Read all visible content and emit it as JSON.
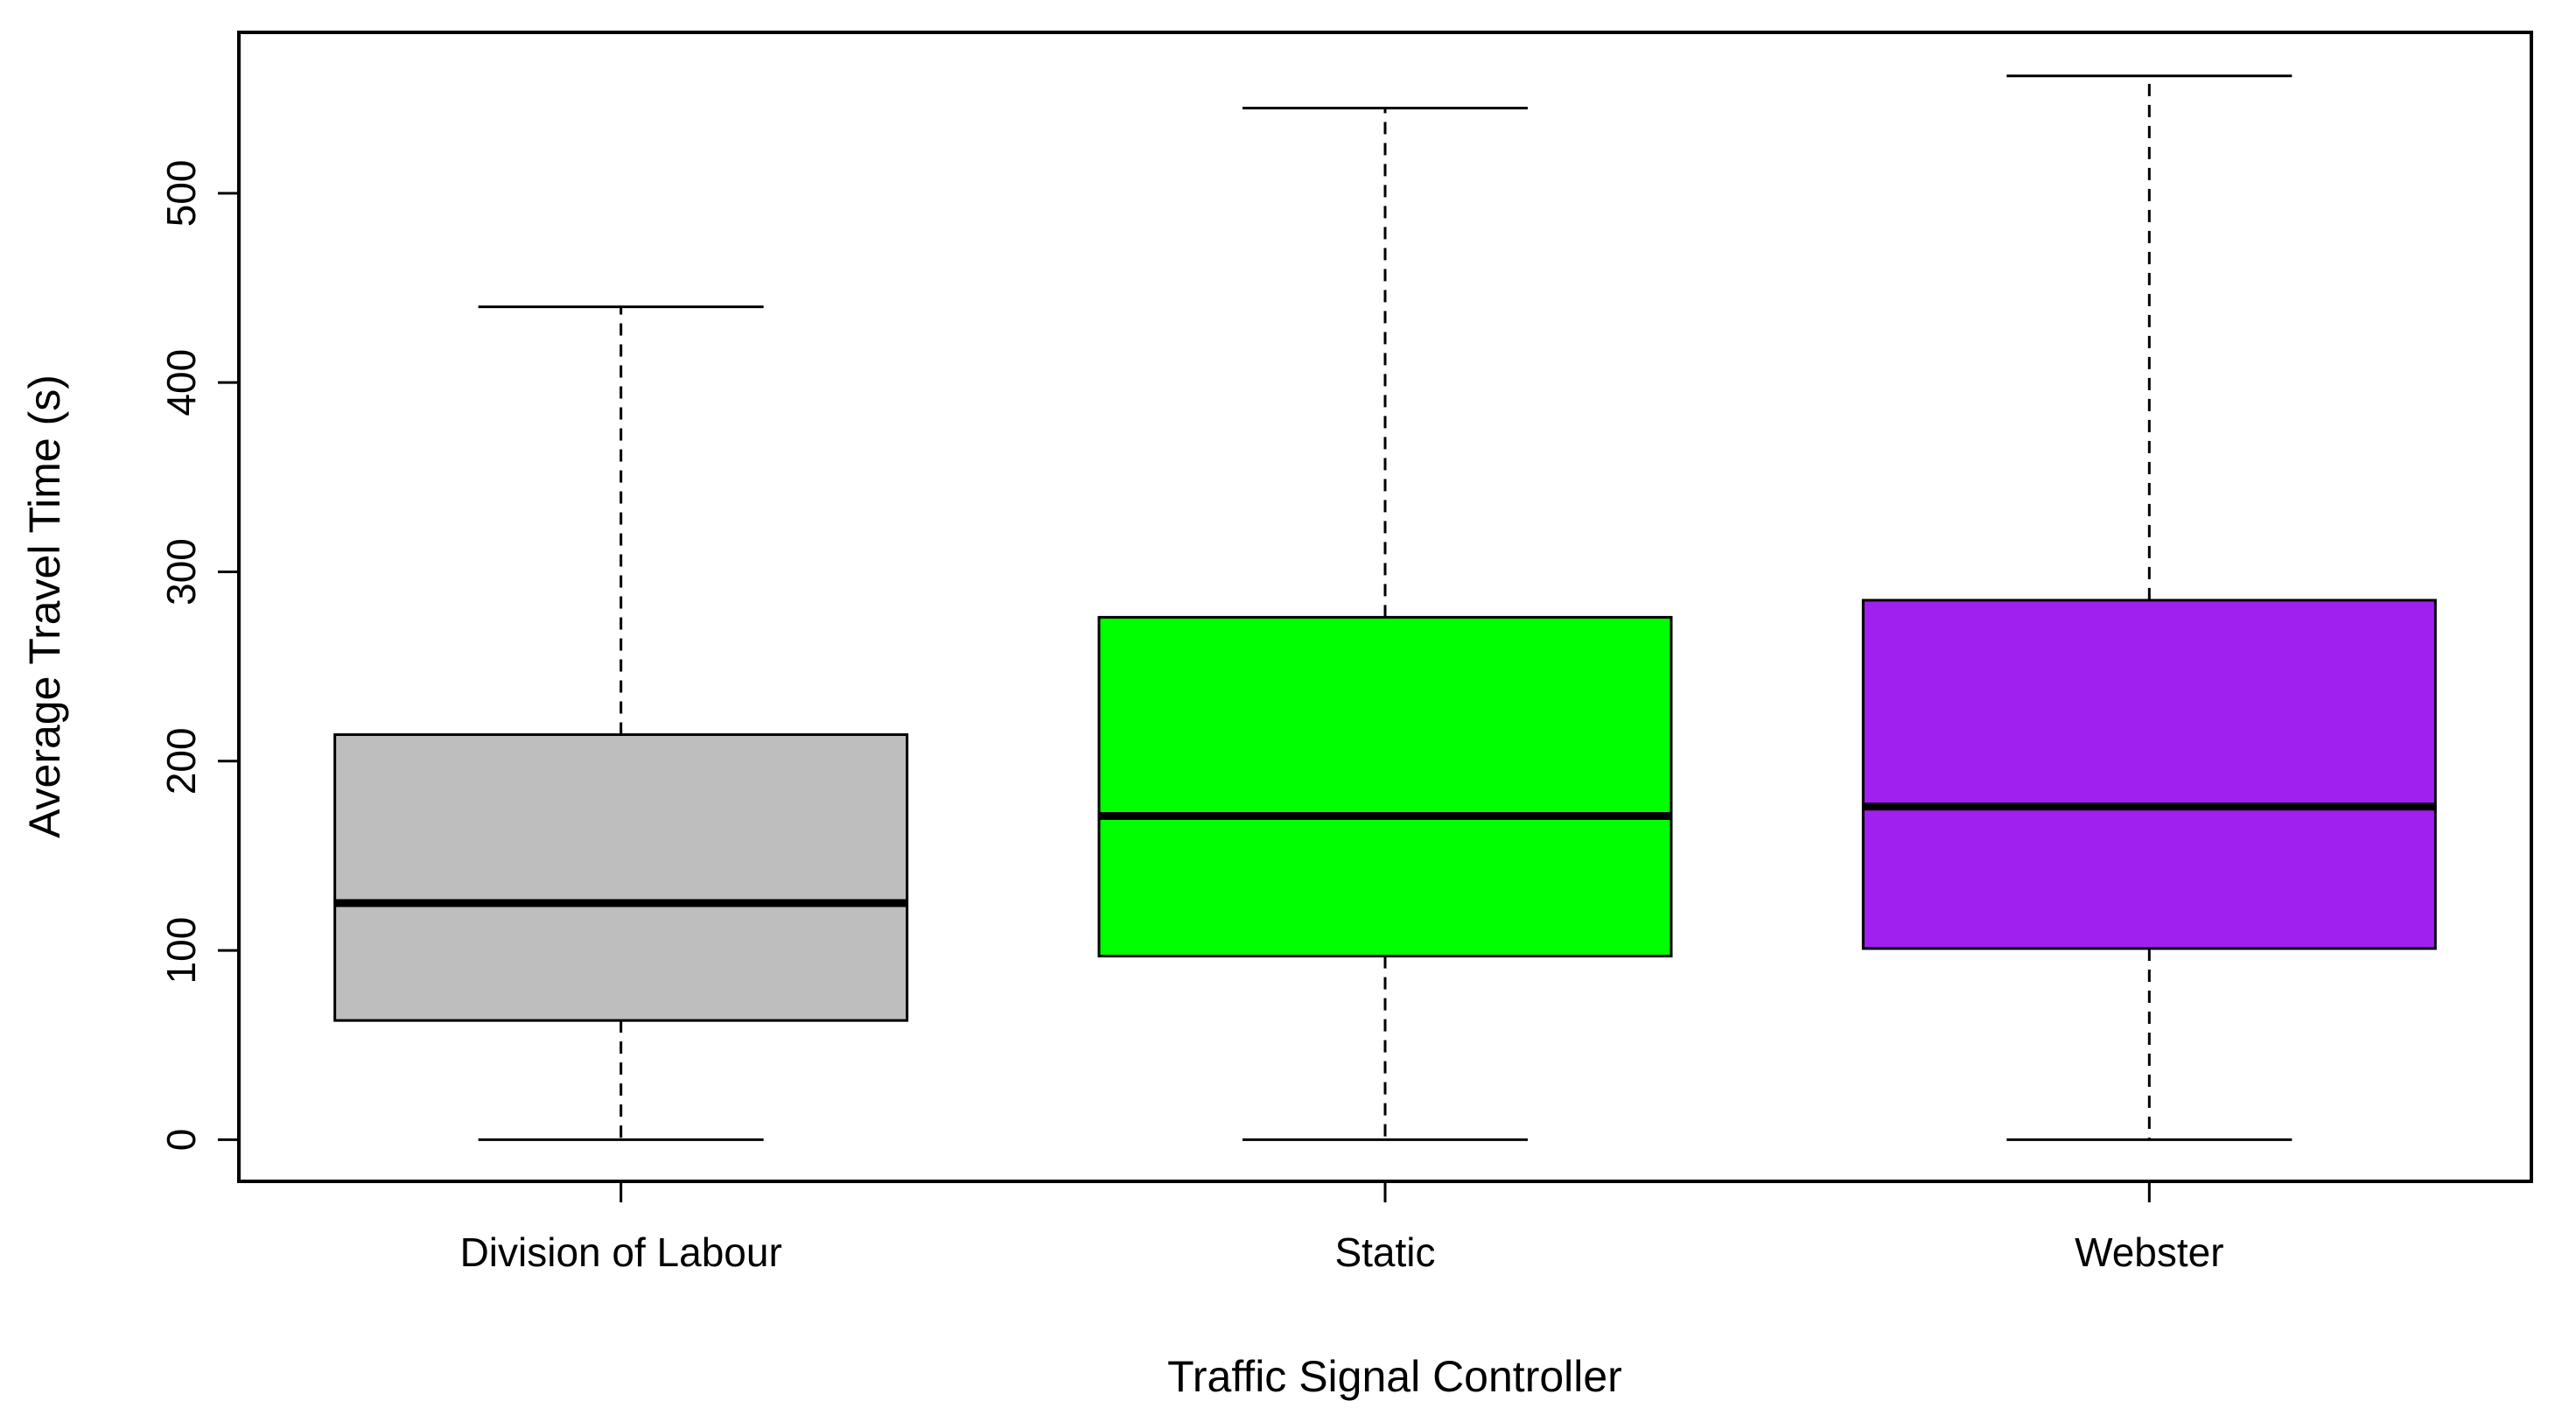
{
  "chart_data": {
    "type": "box",
    "title": "",
    "xlabel": "Traffic Signal Controller",
    "ylabel": "Average Travel Time (s)",
    "ylim": [
      -22,
      585
    ],
    "y_ticks": [
      0,
      100,
      200,
      300,
      400,
      500
    ],
    "grid": false,
    "legend": "none",
    "categories": [
      "Division of Labour",
      "Static",
      "Webster"
    ],
    "boxes": [
      {
        "category": "Division of Labour",
        "min": 0,
        "q1": 63,
        "median": 125,
        "q3": 214,
        "max": 440,
        "color": "#bebebe"
      },
      {
        "category": "Static",
        "min": 0,
        "q1": 97,
        "median": 171,
        "q3": 276,
        "max": 545,
        "color": "#00ff00"
      },
      {
        "category": "Webster",
        "min": 0,
        "q1": 101,
        "median": 176,
        "q3": 285,
        "max": 562,
        "color": "#a020f0"
      }
    ]
  }
}
